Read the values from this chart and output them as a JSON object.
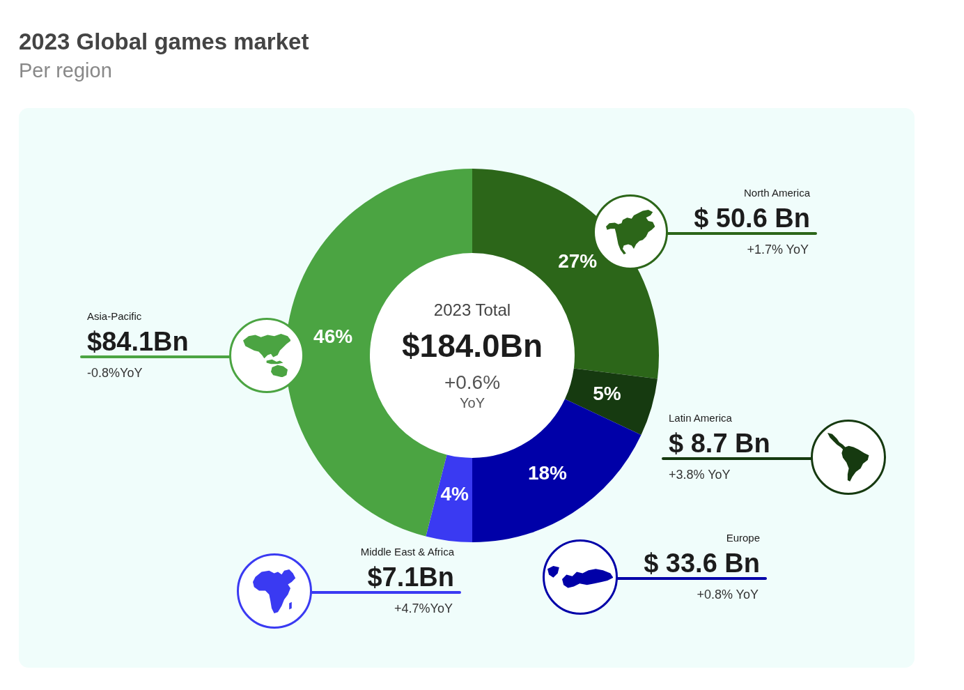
{
  "chart_data": {
    "type": "donut",
    "title": "2023 Global games market",
    "subtitle": "Per region",
    "categories": [
      "North America",
      "Latin America",
      "Europe",
      "Middle East & Africa",
      "Asia-Pacific"
    ],
    "values": [
      27,
      5,
      18,
      4,
      46
    ],
    "colors": [
      "#2c6619",
      "#163a10",
      "#0000a8",
      "#3a3af2",
      "#4ba442"
    ],
    "value_labels": [
      "27%",
      "5%",
      "18%",
      "4%",
      "46%"
    ],
    "annotations": [
      "2023 Total",
      "$184.0Bn",
      "+0.6%",
      "YoY",
      "$ 50.6 Bn",
      "+1.7% YoY",
      "$ 8.7 Bn",
      "+3.8% YoY",
      "$ 33.6 Bn",
      "+0.8% YoY",
      "$7.1Bn",
      "+4.7%YoY",
      "$84.1Bn",
      "-0.8%YoY"
    ]
  }
}
